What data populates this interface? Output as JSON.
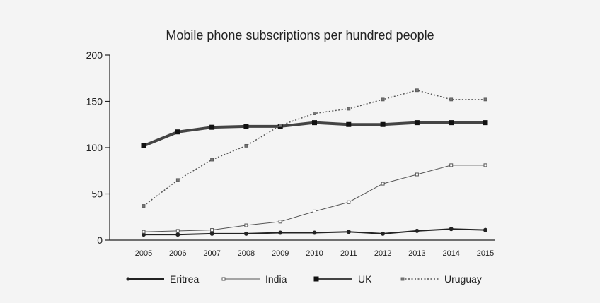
{
  "chart_data": {
    "type": "line",
    "title": "Mobile phone subscriptions per hundred people",
    "xlabel": "",
    "ylabel": "",
    "categories": [
      "2005",
      "2006",
      "2007",
      "2008",
      "2009",
      "2010",
      "2011",
      "2012",
      "2013",
      "2014",
      "2015"
    ],
    "ylim": [
      0,
      200
    ],
    "yticks": [
      0,
      50,
      100,
      150,
      200
    ],
    "grid": false,
    "legend_position": "bottom",
    "series": [
      {
        "name": "Eritrea",
        "values": [
          6,
          6,
          7,
          7,
          8,
          8,
          9,
          7,
          10,
          12,
          11
        ],
        "color": "#222222",
        "style": "solid-thin-dot"
      },
      {
        "name": "India",
        "values": [
          9,
          10,
          11,
          16,
          20,
          31,
          41,
          61,
          71,
          81,
          81
        ],
        "color": "#555555",
        "style": "open-square"
      },
      {
        "name": "UK",
        "values": [
          102,
          117,
          122,
          123,
          123,
          127,
          125,
          125,
          127,
          127,
          127
        ],
        "color": "#444444",
        "style": "thick-square"
      },
      {
        "name": "Uruguay",
        "values": [
          37,
          65,
          87,
          102,
          124,
          137,
          142,
          152,
          162,
          152,
          152
        ],
        "color": "#555555",
        "style": "dotted"
      }
    ]
  }
}
